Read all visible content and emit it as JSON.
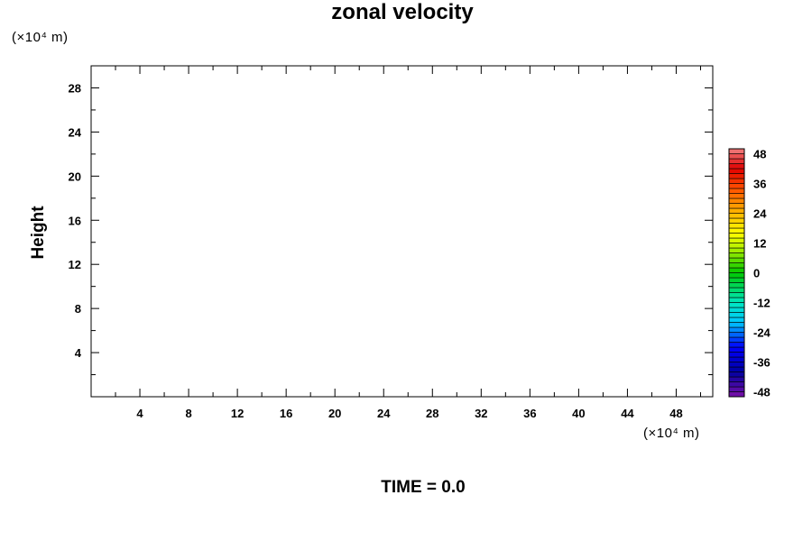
{
  "chart_data": {
    "type": "heatmap",
    "title": "zonal velocity",
    "ylabel": "Height",
    "y_unit_label": "(×10⁴ m)",
    "x_unit_label": "(×10⁴ m)",
    "footer": "TIME = 0.0",
    "xlim": [
      0,
      51
    ],
    "ylim": [
      0,
      30
    ],
    "x_ticks": [
      4,
      8,
      12,
      16,
      20,
      24,
      28,
      32,
      36,
      40,
      44,
      48
    ],
    "y_ticks": [
      4,
      8,
      12,
      16,
      20,
      24,
      28
    ],
    "x_minor_step": 2,
    "y_minor_step": 2,
    "grid": false,
    "values": [],
    "colorbar": {
      "min": -50,
      "max": 50,
      "step": 2,
      "ticks": [
        48,
        36,
        24,
        12,
        0,
        -12,
        -24,
        -36,
        -48
      ],
      "colors": [
        "#7a10a8",
        "#0000a0",
        "#0000ff",
        "#00c8ff",
        "#00e8c0",
        "#00c800",
        "#b4f000",
        "#ffff00",
        "#ffa500",
        "#ff5000",
        "#e00000",
        "#f08080"
      ],
      "color_stops": [
        -50,
        -40,
        -30,
        -20,
        -12,
        0,
        10,
        16,
        26,
        34,
        42,
        50
      ]
    }
  }
}
